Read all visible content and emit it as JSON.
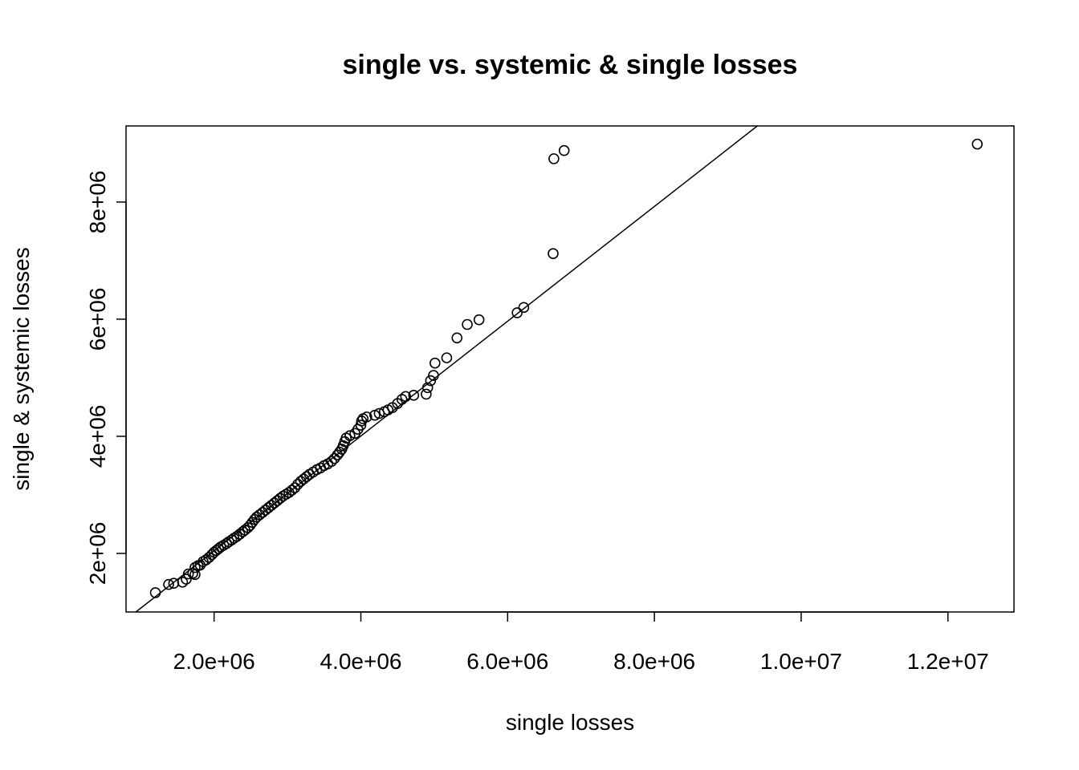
{
  "chart_data": {
    "type": "scatter",
    "title": "single vs. systemic & single losses",
    "xlabel": "single losses",
    "ylabel": "single & systemic losses",
    "xlim": [
      800000,
      12900000
    ],
    "ylim": [
      1000000,
      9300000
    ],
    "x_ticks": [
      {
        "value": 2000000,
        "label": "2.0e+06"
      },
      {
        "value": 4000000,
        "label": "4.0e+06"
      },
      {
        "value": 6000000,
        "label": "6.0e+06"
      },
      {
        "value": 8000000,
        "label": "8.0e+06"
      },
      {
        "value": 10000000,
        "label": "1.0e+07"
      },
      {
        "value": 12000000,
        "label": "1.2e+07"
      }
    ],
    "y_ticks": [
      {
        "value": 2000000,
        "label": "2e+06"
      },
      {
        "value": 4000000,
        "label": "4e+06"
      },
      {
        "value": 6000000,
        "label": "6e+06"
      },
      {
        "value": 8000000,
        "label": "8e+06"
      }
    ],
    "reference_line": {
      "slope": 0.98,
      "intercept": 85000
    },
    "grid": false,
    "points": [
      [
        1200000,
        1330000
      ],
      [
        1380000,
        1470000
      ],
      [
        1450000,
        1490000
      ],
      [
        1570000,
        1510000
      ],
      [
        1620000,
        1560000
      ],
      [
        1650000,
        1650000
      ],
      [
        1710000,
        1660000
      ],
      [
        1740000,
        1640000
      ],
      [
        1740000,
        1760000
      ],
      [
        1780000,
        1790000
      ],
      [
        1810000,
        1800000
      ],
      [
        1850000,
        1860000
      ],
      [
        1890000,
        1890000
      ],
      [
        1930000,
        1930000
      ],
      [
        1970000,
        1980000
      ],
      [
        2000000,
        2020000
      ],
      [
        2030000,
        2050000
      ],
      [
        2060000,
        2080000
      ],
      [
        2090000,
        2110000
      ],
      [
        2130000,
        2140000
      ],
      [
        2170000,
        2170000
      ],
      [
        2200000,
        2200000
      ],
      [
        2240000,
        2230000
      ],
      [
        2270000,
        2260000
      ],
      [
        2310000,
        2290000
      ],
      [
        2350000,
        2330000
      ],
      [
        2390000,
        2370000
      ],
      [
        2420000,
        2400000
      ],
      [
        2460000,
        2440000
      ],
      [
        2490000,
        2480000
      ],
      [
        2520000,
        2530000
      ],
      [
        2550000,
        2580000
      ],
      [
        2580000,
        2620000
      ],
      [
        2620000,
        2660000
      ],
      [
        2660000,
        2700000
      ],
      [
        2700000,
        2740000
      ],
      [
        2740000,
        2780000
      ],
      [
        2780000,
        2820000
      ],
      [
        2820000,
        2860000
      ],
      [
        2860000,
        2900000
      ],
      [
        2900000,
        2940000
      ],
      [
        2940000,
        2980000
      ],
      [
        2980000,
        3010000
      ],
      [
        3020000,
        3040000
      ],
      [
        3060000,
        3080000
      ],
      [
        3100000,
        3120000
      ],
      [
        3140000,
        3180000
      ],
      [
        3180000,
        3230000
      ],
      [
        3220000,
        3270000
      ],
      [
        3260000,
        3310000
      ],
      [
        3300000,
        3350000
      ],
      [
        3350000,
        3390000
      ],
      [
        3400000,
        3430000
      ],
      [
        3450000,
        3460000
      ],
      [
        3500000,
        3500000
      ],
      [
        3550000,
        3530000
      ],
      [
        3600000,
        3570000
      ],
      [
        3640000,
        3620000
      ],
      [
        3680000,
        3680000
      ],
      [
        3710000,
        3730000
      ],
      [
        3740000,
        3780000
      ],
      [
        3760000,
        3840000
      ],
      [
        3780000,
        3910000
      ],
      [
        3800000,
        3970000
      ],
      [
        3850000,
        4010000
      ],
      [
        3920000,
        4050000
      ],
      [
        3960000,
        4120000
      ],
      [
        4000000,
        4190000
      ],
      [
        4010000,
        4260000
      ],
      [
        4030000,
        4300000
      ],
      [
        4080000,
        4330000
      ],
      [
        4190000,
        4360000
      ],
      [
        4250000,
        4390000
      ],
      [
        4320000,
        4420000
      ],
      [
        4370000,
        4450000
      ],
      [
        4430000,
        4490000
      ],
      [
        4500000,
        4560000
      ],
      [
        4560000,
        4630000
      ],
      [
        4610000,
        4680000
      ],
      [
        4720000,
        4700000
      ],
      [
        4890000,
        4720000
      ],
      [
        4910000,
        4830000
      ],
      [
        4950000,
        4950000
      ],
      [
        4990000,
        5040000
      ],
      [
        5010000,
        5250000
      ],
      [
        5170000,
        5340000
      ],
      [
        5310000,
        5680000
      ],
      [
        5450000,
        5910000
      ],
      [
        5610000,
        5990000
      ],
      [
        6130000,
        6110000
      ],
      [
        6220000,
        6200000
      ],
      [
        6620000,
        7120000
      ],
      [
        6630000,
        8740000
      ],
      [
        6770000,
        8880000
      ],
      [
        12400000,
        8990000
      ]
    ]
  }
}
